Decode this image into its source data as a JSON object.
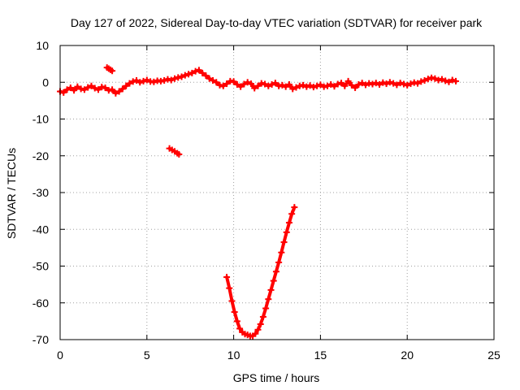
{
  "chart_data": {
    "type": "scatter",
    "title": "Day 127 of 2022, Sidereal Day-to-day VTEC variation (SDTVAR) for receiver park",
    "xlabel": "GPS time / hours",
    "ylabel": "SDTVAR / TECUs",
    "xlim": [
      0,
      25
    ],
    "ylim": [
      -70,
      10
    ],
    "xticks": [
      0,
      5,
      10,
      15,
      20,
      25
    ],
    "yticks": [
      10,
      0,
      -10,
      -20,
      -30,
      -40,
      -50,
      -60,
      -70
    ],
    "grid": true,
    "color": "#ff0000",
    "series": [
      {
        "name": "baseline",
        "points": [
          [
            0.0,
            -2.5
          ],
          [
            0.2,
            -2.8
          ],
          [
            0.4,
            -2.0
          ],
          [
            0.6,
            -1.5
          ],
          [
            0.8,
            -2.2
          ],
          [
            1.0,
            -1.2
          ],
          [
            1.2,
            -1.8
          ],
          [
            1.4,
            -2.0
          ],
          [
            1.6,
            -1.4
          ],
          [
            1.8,
            -1.0
          ],
          [
            2.0,
            -1.6
          ],
          [
            2.2,
            -2.0
          ],
          [
            2.4,
            -1.3
          ],
          [
            2.6,
            -1.5
          ],
          [
            2.8,
            -2.2
          ],
          [
            3.0,
            -2.0
          ],
          [
            3.2,
            -3.0
          ],
          [
            3.4,
            -2.5
          ],
          [
            3.6,
            -1.8
          ],
          [
            3.8,
            -1.0
          ],
          [
            4.0,
            -0.3
          ],
          [
            4.2,
            0.2
          ],
          [
            4.4,
            0.5
          ],
          [
            4.6,
            0.0
          ],
          [
            4.8,
            0.3
          ],
          [
            5.0,
            0.6
          ],
          [
            5.2,
            0.2
          ],
          [
            5.4,
            0.1
          ],
          [
            5.6,
            0.4
          ],
          [
            5.8,
            0.3
          ],
          [
            6.0,
            0.5
          ],
          [
            6.2,
            0.8
          ],
          [
            6.4,
            0.6
          ],
          [
            6.6,
            1.0
          ],
          [
            6.8,
            1.3
          ],
          [
            7.0,
            1.5
          ],
          [
            7.2,
            1.9
          ],
          [
            7.4,
            2.2
          ],
          [
            7.6,
            2.5
          ],
          [
            7.8,
            3.0
          ],
          [
            8.0,
            3.3
          ],
          [
            8.2,
            2.5
          ],
          [
            8.4,
            1.8
          ],
          [
            8.6,
            1.0
          ],
          [
            8.8,
            0.5
          ],
          [
            9.0,
            0.0
          ],
          [
            9.2,
            -0.8
          ],
          [
            9.4,
            -1.0
          ],
          [
            9.6,
            -0.4
          ],
          [
            9.8,
            0.3
          ],
          [
            10.0,
            0.2
          ],
          [
            10.2,
            -0.6
          ],
          [
            10.4,
            -1.2
          ],
          [
            10.6,
            -0.5
          ],
          [
            10.8,
            0.0
          ],
          [
            11.0,
            -0.4
          ],
          [
            11.2,
            -1.6
          ],
          [
            11.4,
            -1.0
          ],
          [
            11.6,
            -0.3
          ],
          [
            11.8,
            -0.5
          ],
          [
            12.0,
            -1.0
          ],
          [
            12.2,
            -0.6
          ],
          [
            12.4,
            -0.2
          ],
          [
            12.6,
            -1.0
          ],
          [
            12.8,
            -0.8
          ],
          [
            13.0,
            -1.2
          ],
          [
            13.2,
            -0.6
          ],
          [
            13.4,
            -1.8
          ],
          [
            13.6,
            -1.4
          ],
          [
            13.8,
            -1.0
          ],
          [
            14.0,
            -0.8
          ],
          [
            14.2,
            -1.2
          ],
          [
            14.4,
            -0.9
          ],
          [
            14.6,
            -1.3
          ],
          [
            14.8,
            -1.0
          ],
          [
            15.0,
            -0.7
          ],
          [
            15.2,
            -1.2
          ],
          [
            15.4,
            -1.0
          ],
          [
            15.6,
            -0.6
          ],
          [
            15.8,
            -1.1
          ],
          [
            16.0,
            -0.5
          ],
          [
            16.2,
            -0.2
          ],
          [
            16.4,
            -1.0
          ],
          [
            16.6,
            0.3
          ],
          [
            16.8,
            -0.8
          ],
          [
            17.0,
            -1.5
          ],
          [
            17.2,
            -0.6
          ],
          [
            17.4,
            -0.2
          ],
          [
            17.6,
            -0.7
          ],
          [
            17.8,
            -0.3
          ],
          [
            18.0,
            -0.5
          ],
          [
            18.2,
            -0.2
          ],
          [
            18.4,
            -0.6
          ],
          [
            18.6,
            -0.1
          ],
          [
            18.8,
            -0.4
          ],
          [
            19.0,
            0.0
          ],
          [
            19.2,
            -0.3
          ],
          [
            19.4,
            -0.7
          ],
          [
            19.6,
            -0.2
          ],
          [
            19.8,
            -0.5
          ],
          [
            20.0,
            -0.8
          ],
          [
            20.2,
            -0.4
          ],
          [
            20.4,
            -0.1
          ],
          [
            20.6,
            -0.3
          ],
          [
            20.8,
            0.2
          ],
          [
            21.0,
            0.5
          ],
          [
            21.2,
            0.9
          ],
          [
            21.4,
            1.2
          ],
          [
            21.6,
            1.0
          ],
          [
            21.8,
            0.6
          ],
          [
            22.0,
            0.8
          ],
          [
            22.2,
            0.4
          ],
          [
            22.4,
            0.1
          ],
          [
            22.6,
            0.6
          ],
          [
            22.8,
            0.3
          ]
        ]
      },
      {
        "name": "dip-arc",
        "points": [
          [
            9.6,
            -53
          ],
          [
            9.75,
            -56
          ],
          [
            9.9,
            -59.5
          ],
          [
            10.05,
            -62.5
          ],
          [
            10.2,
            -65
          ],
          [
            10.35,
            -67
          ],
          [
            10.5,
            -68
          ],
          [
            10.65,
            -68.5
          ],
          [
            10.8,
            -68.7
          ],
          [
            10.95,
            -69
          ],
          [
            11.1,
            -69
          ],
          [
            11.25,
            -68.4
          ],
          [
            11.4,
            -67.3
          ],
          [
            11.55,
            -65.8
          ],
          [
            11.7,
            -63.8
          ],
          [
            11.85,
            -61.5
          ],
          [
            12.0,
            -59
          ],
          [
            12.15,
            -56.5
          ],
          [
            12.3,
            -54
          ],
          [
            12.45,
            -51.5
          ],
          [
            12.6,
            -49
          ],
          [
            12.75,
            -46.3
          ],
          [
            12.9,
            -43.5
          ],
          [
            13.05,
            -40.8
          ],
          [
            13.2,
            -38.2
          ],
          [
            13.35,
            -35.8
          ],
          [
            13.5,
            -34
          ]
        ]
      },
      {
        "name": "segment-near-3h",
        "points": [
          [
            2.7,
            4.0
          ],
          [
            2.8,
            3.7
          ],
          [
            2.9,
            3.4
          ],
          [
            3.0,
            3.1
          ]
        ]
      },
      {
        "name": "segment-near-6.5h",
        "points": [
          [
            6.3,
            -18.0
          ],
          [
            6.45,
            -18.4
          ],
          [
            6.6,
            -18.8
          ],
          [
            6.75,
            -19.3
          ],
          [
            6.85,
            -19.6
          ]
        ]
      }
    ]
  }
}
